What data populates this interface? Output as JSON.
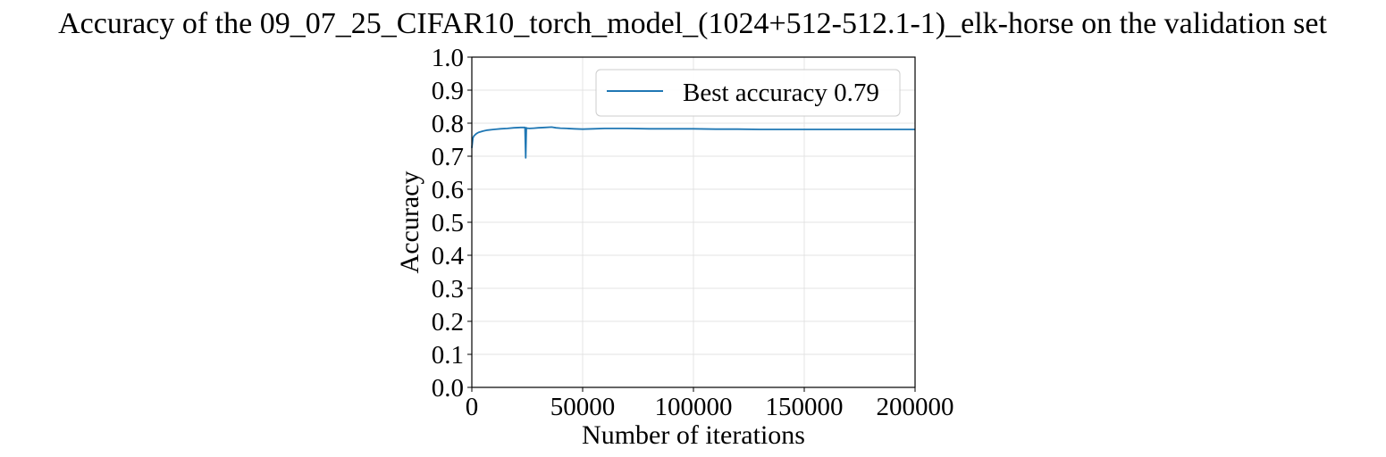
{
  "chart_data": {
    "type": "line",
    "title": "Accuracy of the 09_07_25_CIFAR10_torch_model_(1024+512-512.1-1)_elk-horse on the validation set",
    "xlabel": "Number of iterations",
    "ylabel": "Accuracy",
    "xlim": [
      0,
      200000
    ],
    "ylim": [
      0.0,
      1.0
    ],
    "xticks": [
      0,
      50000,
      100000,
      150000,
      200000
    ],
    "xtick_labels": [
      "0",
      "50000",
      "100000",
      "150000",
      "200000"
    ],
    "yticks": [
      0.0,
      0.1,
      0.2,
      0.3,
      0.4,
      0.5,
      0.6,
      0.7,
      0.8,
      0.9,
      1.0
    ],
    "ytick_labels": [
      "0.0",
      "0.1",
      "0.2",
      "0.3",
      "0.4",
      "0.5",
      "0.6",
      "0.7",
      "0.8",
      "0.9",
      "1.0"
    ],
    "grid": true,
    "legend_position": "top-right",
    "series": [
      {
        "name": "Best accuracy 0.79",
        "color": "#1f77b4",
        "x": [
          0,
          500,
          1000,
          2000,
          3000,
          5000,
          7000,
          10000,
          13000,
          16000,
          19000,
          22000,
          24000,
          24300,
          24600,
          24900,
          26000,
          28000,
          30000,
          33000,
          36000,
          38000,
          40000,
          43000,
          46000,
          50000,
          55000,
          60000,
          70000,
          80000,
          90000,
          100000,
          110000,
          120000,
          130000,
          140000,
          150000,
          160000,
          170000,
          180000,
          190000,
          200000
        ],
        "values": [
          0.725,
          0.755,
          0.762,
          0.768,
          0.772,
          0.776,
          0.779,
          0.781,
          0.783,
          0.784,
          0.786,
          0.787,
          0.787,
          0.695,
          0.786,
          0.785,
          0.784,
          0.785,
          0.786,
          0.787,
          0.788,
          0.786,
          0.785,
          0.784,
          0.783,
          0.782,
          0.783,
          0.784,
          0.784,
          0.783,
          0.783,
          0.783,
          0.782,
          0.782,
          0.781,
          0.781,
          0.781,
          0.781,
          0.781,
          0.781,
          0.781,
          0.781
        ]
      }
    ]
  }
}
